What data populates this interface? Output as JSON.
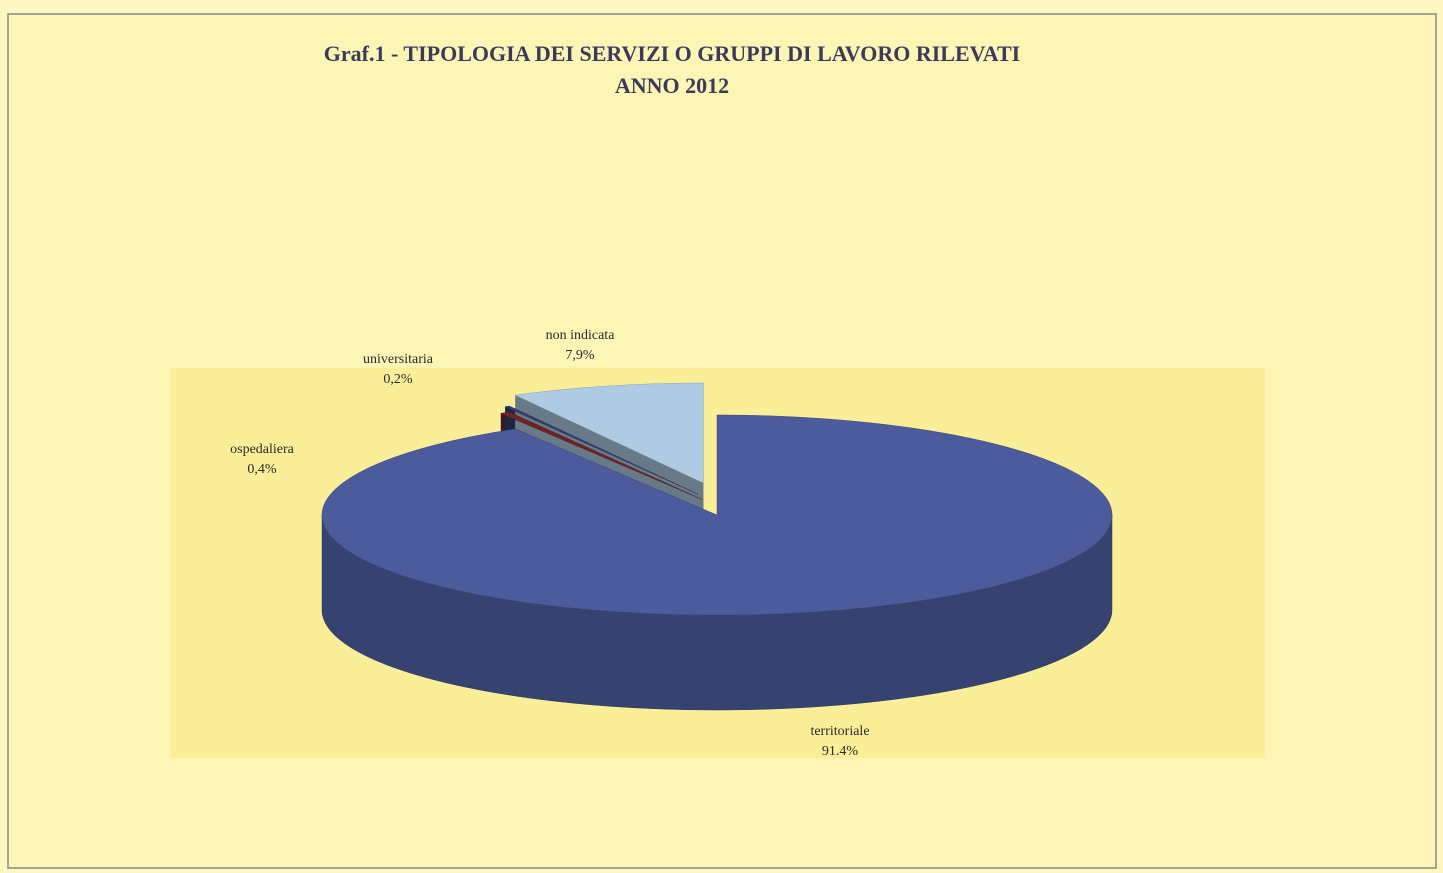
{
  "chart_data": {
    "type": "pie",
    "title": "Graf.1 - TIPOLOGIA DEI SERVIZI O GRUPPI DI LAVORO RILEVATI",
    "subtitle": "ANNO 2012",
    "categories": [
      "territoriale",
      "ospedaliera",
      "universitaria",
      "non indicata"
    ],
    "values": [
      91.4,
      0.4,
      0.2,
      7.9
    ],
    "value_labels": [
      "91.4%",
      "0,4%",
      "0,2%",
      "7,9%"
    ],
    "colors": [
      "#4b5b9c",
      "#6e2326",
      "#2f3f72",
      "#aecbe3"
    ]
  }
}
